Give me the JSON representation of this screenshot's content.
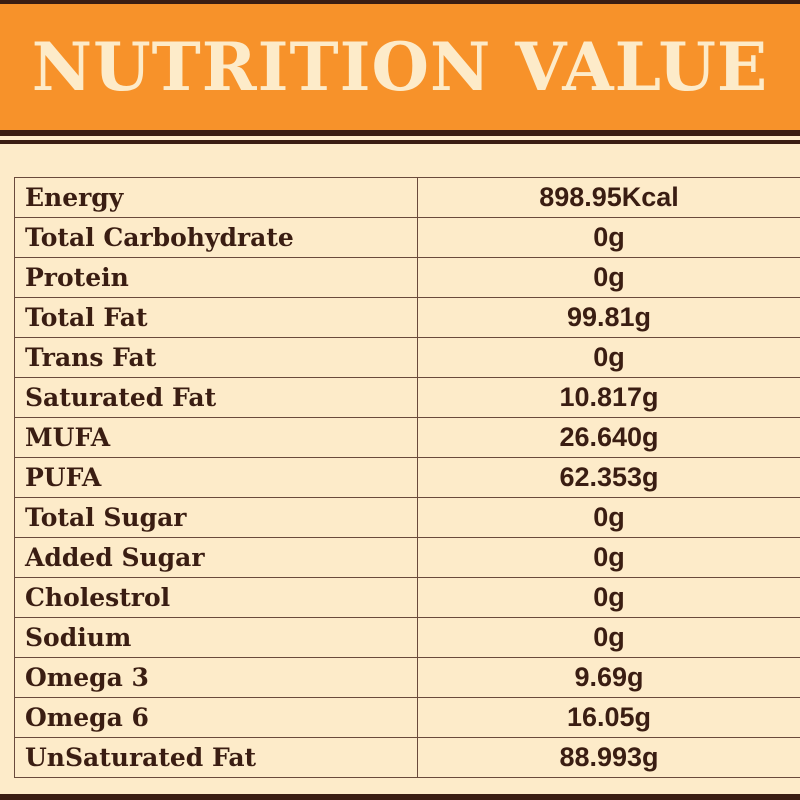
{
  "header": {
    "title": "NUTRITION VALUE"
  },
  "colors": {
    "header_bg": "#f7922a",
    "page_bg": "#fdebc9",
    "text": "#3a1d12"
  },
  "rows": [
    {
      "label": "Energy",
      "value": "898.95Kcal"
    },
    {
      "label": "Total Carbohydrate",
      "value": "0g"
    },
    {
      "label": "Protein",
      "value": "0g"
    },
    {
      "label": "Total Fat",
      "value": "99.81g"
    },
    {
      "label": "Trans Fat",
      "value": "0g"
    },
    {
      "label": "Saturated Fat",
      "value": "10.817g"
    },
    {
      "label": "MUFA",
      "value": "26.640g"
    },
    {
      "label": "PUFA",
      "value": "62.353g"
    },
    {
      "label": "Total Sugar",
      "value": "0g"
    },
    {
      "label": "Added Sugar",
      "value": "0g"
    },
    {
      "label": "Cholestrol",
      "value": "0g"
    },
    {
      "label": "Sodium",
      "value": "0g"
    },
    {
      "label": "Omega 3",
      "value": "9.69g"
    },
    {
      "label": "Omega 6",
      "value": "16.05g"
    },
    {
      "label": "UnSaturated Fat",
      "value": "88.993g"
    }
  ]
}
